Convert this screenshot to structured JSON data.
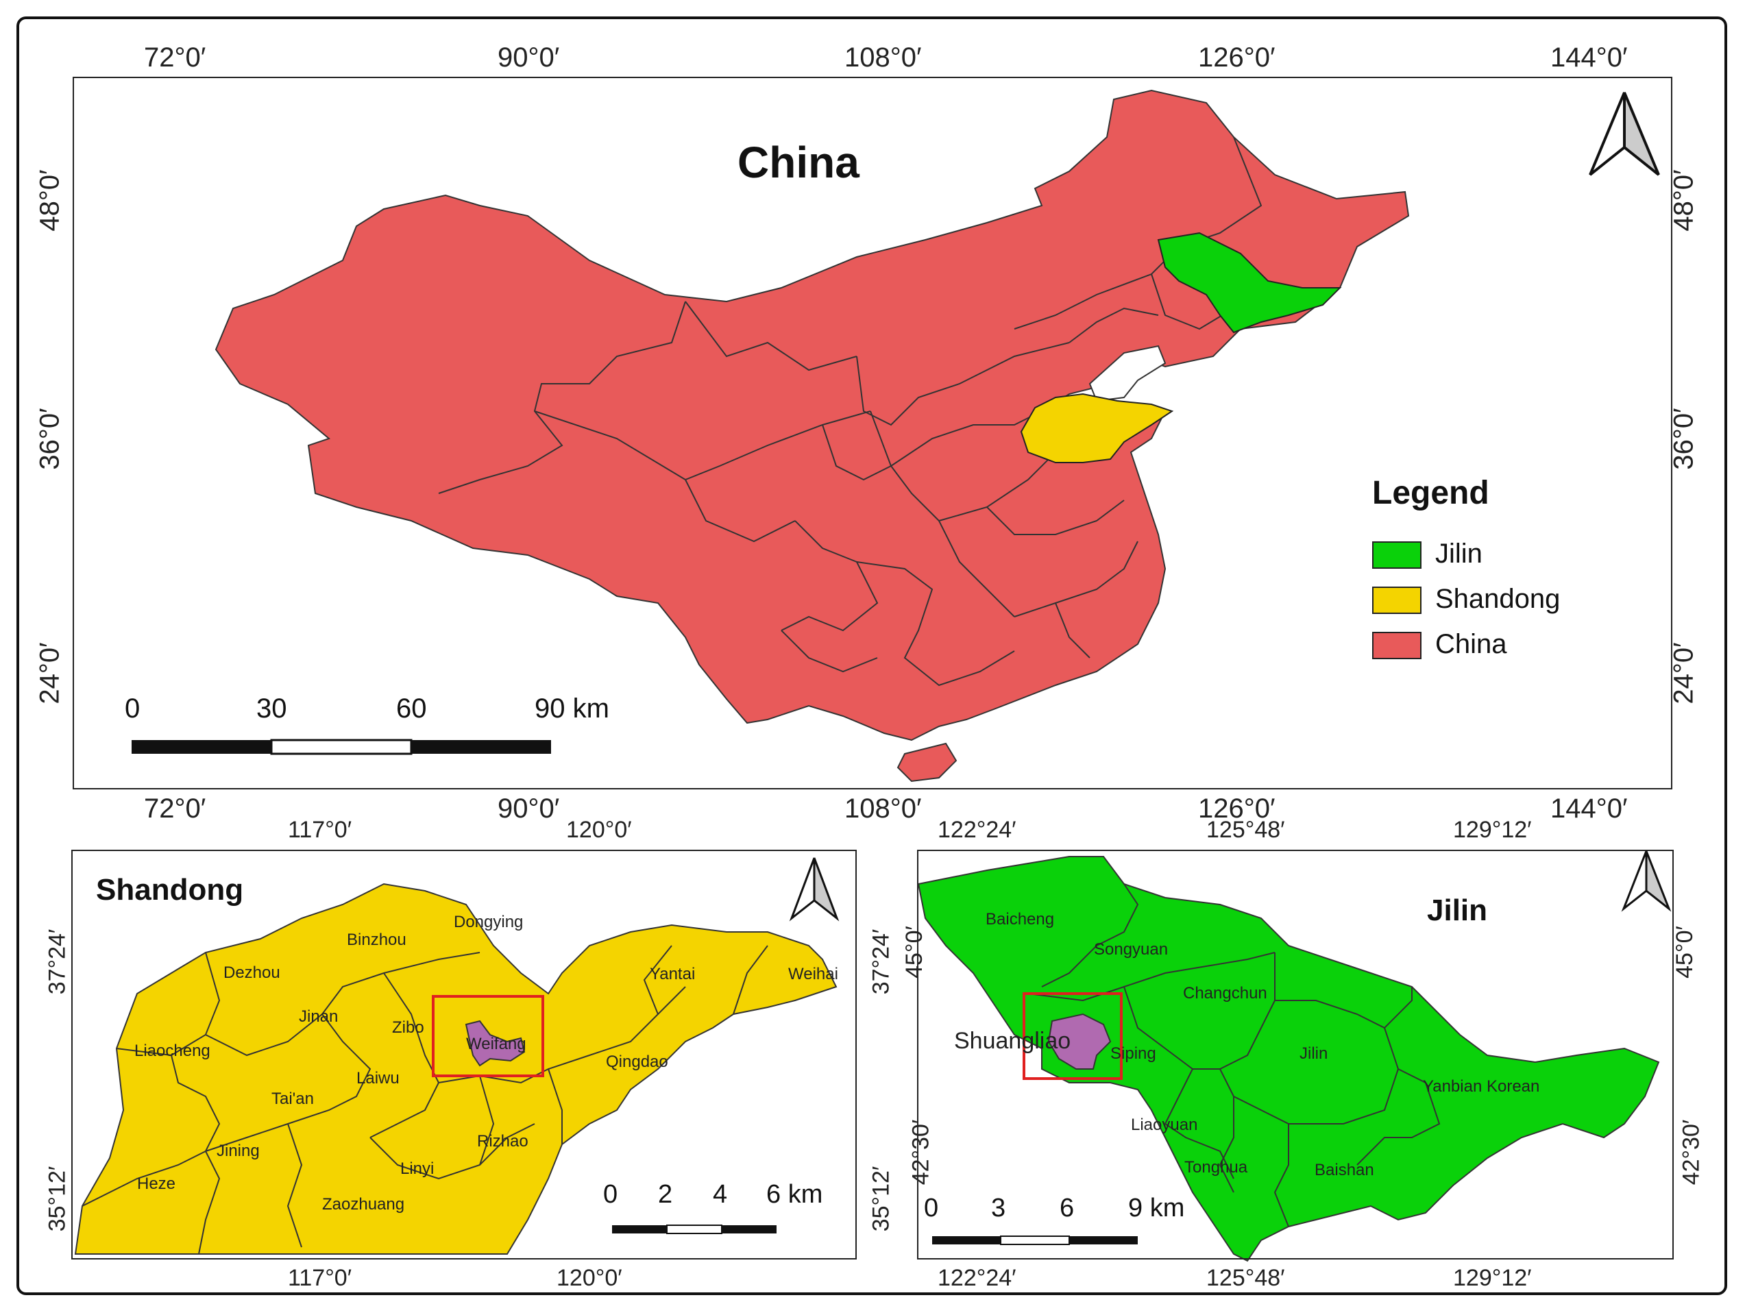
{
  "colors": {
    "china": "#e85a5a",
    "jilin": "#0ad10a",
    "shandong": "#f4d400",
    "study": "#b06ab0",
    "box": "#e02020"
  },
  "main_map": {
    "title": "China",
    "top_ticks": [
      "72°0′",
      "90°0′",
      "108°0′",
      "126°0′",
      "144°0′"
    ],
    "bottom_ticks": [
      "72°0′",
      "90°0′",
      "108°0′",
      "126°0′",
      "144°0′"
    ],
    "left_ticks": [
      "48°0′",
      "36°0′",
      "24°0′"
    ],
    "right_ticks": [
      "48°0′",
      "36°0′",
      "24°0′"
    ],
    "scale": [
      "0",
      "30",
      "60",
      "90 km"
    ],
    "north_icon": "north-arrow-icon"
  },
  "legend": {
    "title": "Legend",
    "items": [
      {
        "label": "Jilin",
        "color": "#0ad10a"
      },
      {
        "label": "Shandong",
        "color": "#f4d400"
      },
      {
        "label": "China",
        "color": "#e85a5a"
      }
    ]
  },
  "shandong_map": {
    "title": "Shandong",
    "top_ticks": [
      "117°0′",
      "120°0′"
    ],
    "bottom_ticks": [
      "117°0′",
      "120°0′"
    ],
    "left_ticks": [
      "37°24′",
      "35°12′"
    ],
    "scale": [
      "0",
      "2",
      "4",
      "6 km"
    ],
    "labels": [
      "Dongying",
      "Binzhou",
      "Dezhou",
      "Yantai",
      "Weihai",
      "Jinan",
      "Zibo",
      "Weifang",
      "Liaocheng",
      "Laiwu",
      "Qingdao",
      "Tai'an",
      "Rizhao",
      "Jining",
      "Heze",
      "Linyi",
      "Zaozhuang"
    ]
  },
  "jilin_map": {
    "title": "Jilin",
    "top_ticks": [
      "122°24′",
      "125°48′",
      "129°12′"
    ],
    "bottom_ticks": [
      "122°24′",
      "125°48′",
      "129°12′"
    ],
    "left_ticks": [
      "37°24′",
      "35°12′"
    ],
    "inner_left_ticks": [
      "45°0′",
      "42°30′"
    ],
    "right_ticks": [
      "45°0′",
      "42°30′"
    ],
    "scale": [
      "0",
      "3",
      "6",
      "9 km"
    ],
    "labels": [
      "Baicheng",
      "Songyuan",
      "Changchun",
      "Shuangliao",
      "Siping",
      "Jilin",
      "Yanbian Korean",
      "Liaoyuan",
      "Tonghua",
      "Baishan"
    ]
  }
}
